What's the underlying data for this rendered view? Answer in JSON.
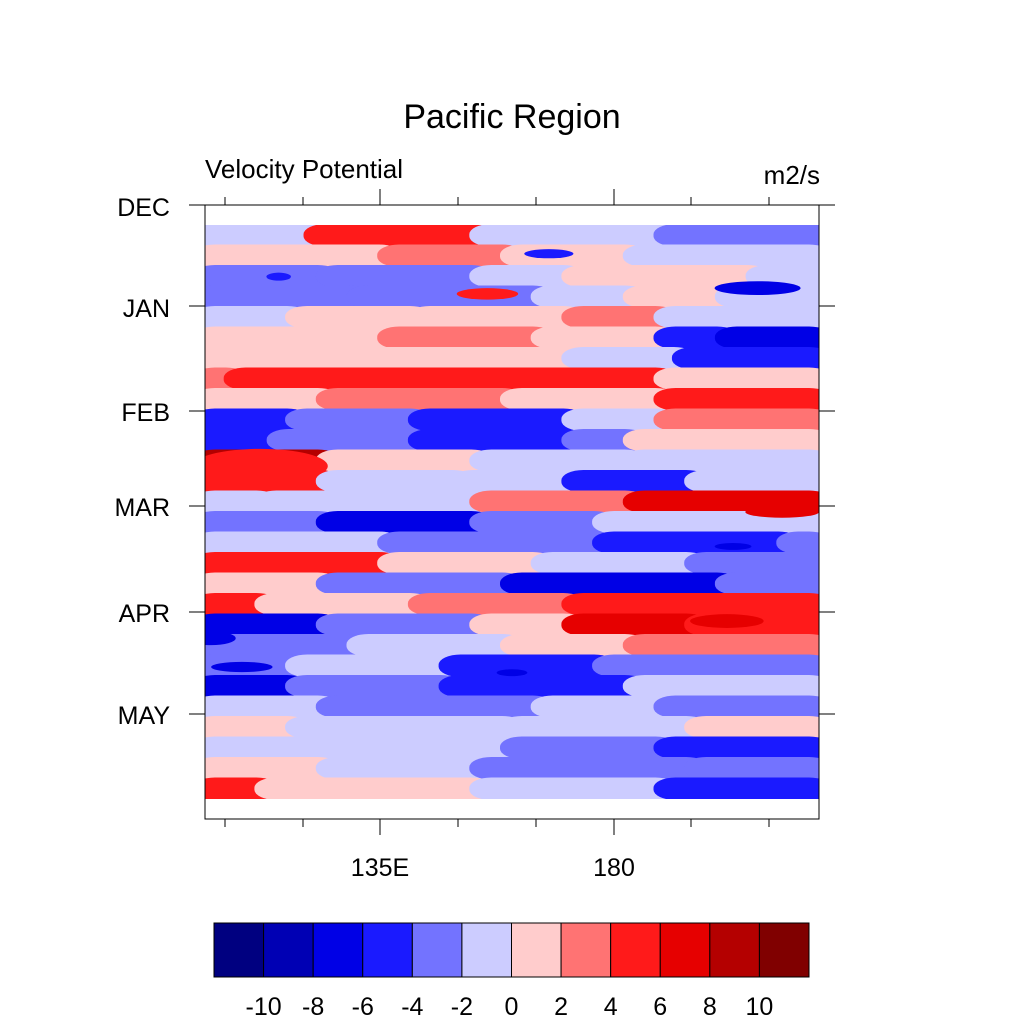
{
  "chart_data": {
    "type": "heatmap",
    "title": "Pacific Region",
    "left_string": "Velocity Potential",
    "right_string": "m2/s",
    "xlabel": "",
    "ylabel": "",
    "x_ticks": [
      "135E",
      "180"
    ],
    "y_ticks": [
      "DEC",
      "JAN",
      "FEB",
      "MAR",
      "APR",
      "MAY"
    ],
    "colorbar": {
      "colors": [
        "#000080",
        "#0000b4",
        "#0000e6",
        "#1a1aff",
        "#7373ff",
        "#ccccff",
        "#ffcccc",
        "#ff7373",
        "#ff1a1a",
        "#e60000",
        "#b40000",
        "#800000"
      ],
      "labels": [
        "-10",
        "-8",
        "-6",
        "-4",
        "-2",
        "0",
        "2",
        "4",
        "6",
        "8",
        "10"
      ],
      "levels": [
        -10,
        -8,
        -6,
        -4,
        -2,
        0,
        2,
        4,
        6,
        8,
        10
      ]
    },
    "bands": [
      {
        "level": 0,
        "segments": [
          [
            0.0,
            0.18,
            0
          ],
          [
            0.18,
            0.45,
            3
          ],
          [
            0.45,
            0.75,
            0
          ],
          [
            0.75,
            1.0,
            -1
          ]
        ]
      },
      {
        "level": 1,
        "segments": [
          [
            0.0,
            0.3,
            1
          ],
          [
            0.3,
            0.5,
            2
          ],
          [
            0.5,
            0.7,
            1
          ],
          [
            0.7,
            1.0,
            0
          ]
        ]
      },
      {
        "level": 2,
        "segments": [
          [
            0.0,
            0.2,
            -1
          ],
          [
            0.2,
            0.45,
            -1
          ],
          [
            0.45,
            0.6,
            0
          ],
          [
            0.6,
            0.9,
            1
          ],
          [
            0.9,
            1.0,
            0
          ]
        ]
      },
      {
        "level": 3,
        "segments": [
          [
            0.0,
            0.25,
            -1
          ],
          [
            0.25,
            0.55,
            -1
          ],
          [
            0.55,
            0.7,
            0
          ],
          [
            0.7,
            0.85,
            1
          ],
          [
            0.85,
            1.0,
            0
          ]
        ]
      },
      {
        "level": 4,
        "segments": [
          [
            0.0,
            0.15,
            0
          ],
          [
            0.15,
            0.35,
            1
          ],
          [
            0.35,
            0.6,
            1
          ],
          [
            0.6,
            0.75,
            2
          ],
          [
            0.75,
            1.0,
            0
          ]
        ]
      },
      {
        "level": 5,
        "segments": [
          [
            0.0,
            0.3,
            1
          ],
          [
            0.3,
            0.55,
            2
          ],
          [
            0.55,
            0.75,
            1
          ],
          [
            0.75,
            0.85,
            -2
          ],
          [
            0.85,
            1.0,
            -3
          ]
        ]
      },
      {
        "level": 6,
        "segments": [
          [
            0.0,
            0.15,
            1
          ],
          [
            0.15,
            0.6,
            1
          ],
          [
            0.6,
            0.78,
            0
          ],
          [
            0.78,
            1.0,
            -2
          ]
        ]
      },
      {
        "level": 7,
        "segments": [
          [
            0.0,
            0.05,
            2
          ],
          [
            0.05,
            0.75,
            3
          ],
          [
            0.75,
            1.0,
            1
          ]
        ]
      },
      {
        "level": 8,
        "segments": [
          [
            0.0,
            0.2,
            1
          ],
          [
            0.2,
            0.5,
            2
          ],
          [
            0.5,
            0.75,
            1
          ],
          [
            0.75,
            1.0,
            3
          ]
        ]
      },
      {
        "level": 9,
        "segments": [
          [
            0.0,
            0.15,
            -2
          ],
          [
            0.15,
            0.35,
            -1
          ],
          [
            0.35,
            0.6,
            -2
          ],
          [
            0.6,
            0.75,
            0
          ],
          [
            0.75,
            1.0,
            2
          ]
        ]
      },
      {
        "level": 10,
        "segments": [
          [
            0.0,
            0.12,
            -2
          ],
          [
            0.12,
            0.35,
            -1
          ],
          [
            0.35,
            0.6,
            -2
          ],
          [
            0.6,
            0.7,
            -1
          ],
          [
            0.7,
            1.0,
            1
          ]
        ]
      },
      {
        "level": 11,
        "segments": [
          [
            0.0,
            0.2,
            5
          ],
          [
            0.2,
            0.45,
            1
          ],
          [
            0.45,
            0.7,
            0
          ],
          [
            0.7,
            1.0,
            0
          ]
        ]
      },
      {
        "level": 12,
        "segments": [
          [
            0.0,
            0.2,
            3
          ],
          [
            0.2,
            0.42,
            0
          ],
          [
            0.42,
            0.6,
            0
          ],
          [
            0.6,
            0.8,
            -2
          ],
          [
            0.8,
            1.0,
            0
          ]
        ]
      },
      {
        "level": 13,
        "segments": [
          [
            0.0,
            0.1,
            0
          ],
          [
            0.1,
            0.45,
            0
          ],
          [
            0.45,
            0.7,
            2
          ],
          [
            0.7,
            1.0,
            4
          ]
        ]
      },
      {
        "level": 14,
        "segments": [
          [
            0.0,
            0.2,
            -1
          ],
          [
            0.2,
            0.45,
            -3
          ],
          [
            0.45,
            0.65,
            -1
          ],
          [
            0.65,
            1.0,
            0
          ]
        ]
      },
      {
        "level": 15,
        "segments": [
          [
            0.0,
            0.3,
            0
          ],
          [
            0.3,
            0.65,
            -1
          ],
          [
            0.65,
            0.95,
            -2
          ],
          [
            0.95,
            1.0,
            -1
          ]
        ]
      },
      {
        "level": 16,
        "segments": [
          [
            0.0,
            0.3,
            3
          ],
          [
            0.3,
            0.55,
            1
          ],
          [
            0.55,
            0.8,
            0
          ],
          [
            0.8,
            1.0,
            -1
          ]
        ]
      },
      {
        "level": 17,
        "segments": [
          [
            0.0,
            0.2,
            1
          ],
          [
            0.2,
            0.5,
            -1
          ],
          [
            0.5,
            0.85,
            -3
          ],
          [
            0.85,
            1.0,
            -1
          ]
        ]
      },
      {
        "level": 18,
        "segments": [
          [
            0.0,
            0.1,
            3
          ],
          [
            0.1,
            0.35,
            1
          ],
          [
            0.35,
            0.6,
            2
          ],
          [
            0.6,
            1.0,
            3
          ]
        ]
      },
      {
        "level": 19,
        "segments": [
          [
            0.0,
            0.2,
            -3
          ],
          [
            0.2,
            0.45,
            -1
          ],
          [
            0.45,
            0.6,
            1
          ],
          [
            0.6,
            0.8,
            4
          ],
          [
            0.8,
            1.0,
            3
          ]
        ]
      },
      {
        "level": 20,
        "segments": [
          [
            0.0,
            0.25,
            -1
          ],
          [
            0.25,
            0.5,
            0
          ],
          [
            0.5,
            0.7,
            1
          ],
          [
            0.7,
            1.0,
            2
          ]
        ]
      },
      {
        "level": 21,
        "segments": [
          [
            0.0,
            0.15,
            -1
          ],
          [
            0.15,
            0.4,
            0
          ],
          [
            0.4,
            0.65,
            -2
          ],
          [
            0.65,
            1.0,
            -1
          ]
        ]
      },
      {
        "level": 22,
        "segments": [
          [
            0.0,
            0.15,
            -3
          ],
          [
            0.15,
            0.4,
            -1
          ],
          [
            0.4,
            0.7,
            -2
          ],
          [
            0.7,
            1.0,
            0
          ]
        ]
      },
      {
        "level": 23,
        "segments": [
          [
            0.0,
            0.2,
            0
          ],
          [
            0.2,
            0.55,
            -1
          ],
          [
            0.55,
            0.75,
            0
          ],
          [
            0.75,
            1.0,
            -1
          ]
        ]
      },
      {
        "level": 24,
        "segments": [
          [
            0.0,
            0.15,
            1
          ],
          [
            0.15,
            0.5,
            0
          ],
          [
            0.5,
            0.8,
            0
          ],
          [
            0.8,
            1.0,
            1
          ]
        ]
      },
      {
        "level": 25,
        "segments": [
          [
            0.0,
            0.25,
            0
          ],
          [
            0.25,
            0.5,
            0
          ],
          [
            0.5,
            0.75,
            -1
          ],
          [
            0.75,
            1.0,
            -2
          ]
        ]
      },
      {
        "level": 26,
        "segments": [
          [
            0.0,
            0.2,
            1
          ],
          [
            0.2,
            0.45,
            0
          ],
          [
            0.45,
            0.8,
            -1
          ],
          [
            0.8,
            1.0,
            -1
          ]
        ]
      },
      {
        "level": 27,
        "segments": [
          [
            0.0,
            0.1,
            3
          ],
          [
            0.1,
            0.45,
            1
          ],
          [
            0.45,
            0.75,
            0
          ],
          [
            0.75,
            1.0,
            -2
          ]
        ]
      }
    ],
    "blobs": [
      {
        "cx": 0.05,
        "cy": 0.42,
        "rx": 0.05,
        "ry": 0.012,
        "level": 5
      },
      {
        "cx": 0.09,
        "cy": 0.42,
        "rx": 0.11,
        "ry": 0.03,
        "level": 3
      },
      {
        "cx": 0.9,
        "cy": 0.11,
        "rx": 0.07,
        "ry": 0.012,
        "level": -3
      },
      {
        "cx": 0.85,
        "cy": 0.69,
        "rx": 0.06,
        "ry": 0.012,
        "level": 4
      },
      {
        "cx": 0.6,
        "cy": 0.616,
        "rx": 0.06,
        "ry": 0.008,
        "level": -3
      },
      {
        "cx": 0.94,
        "cy": 0.5,
        "rx": 0.06,
        "ry": 0.01,
        "level": 4
      },
      {
        "cx": 0.86,
        "cy": 0.56,
        "rx": 0.03,
        "ry": 0.006,
        "level": -3
      },
      {
        "cx": 0.26,
        "cy": 0.52,
        "rx": 0.03,
        "ry": 0.007,
        "level": -3
      },
      {
        "cx": 0.06,
        "cy": 0.77,
        "rx": 0.05,
        "ry": 0.009,
        "level": -3
      },
      {
        "cx": 0.5,
        "cy": 0.78,
        "rx": 0.025,
        "ry": 0.006,
        "level": -3
      },
      {
        "cx": 0.01,
        "cy": 0.72,
        "rx": 0.04,
        "ry": 0.012,
        "level": -3
      },
      {
        "cx": 0.46,
        "cy": 0.12,
        "rx": 0.05,
        "ry": 0.01,
        "level": 3
      },
      {
        "cx": 0.56,
        "cy": 0.05,
        "rx": 0.04,
        "ry": 0.008,
        "level": -2
      },
      {
        "cx": 0.12,
        "cy": 0.09,
        "rx": 0.02,
        "ry": 0.007,
        "level": -2
      }
    ]
  }
}
